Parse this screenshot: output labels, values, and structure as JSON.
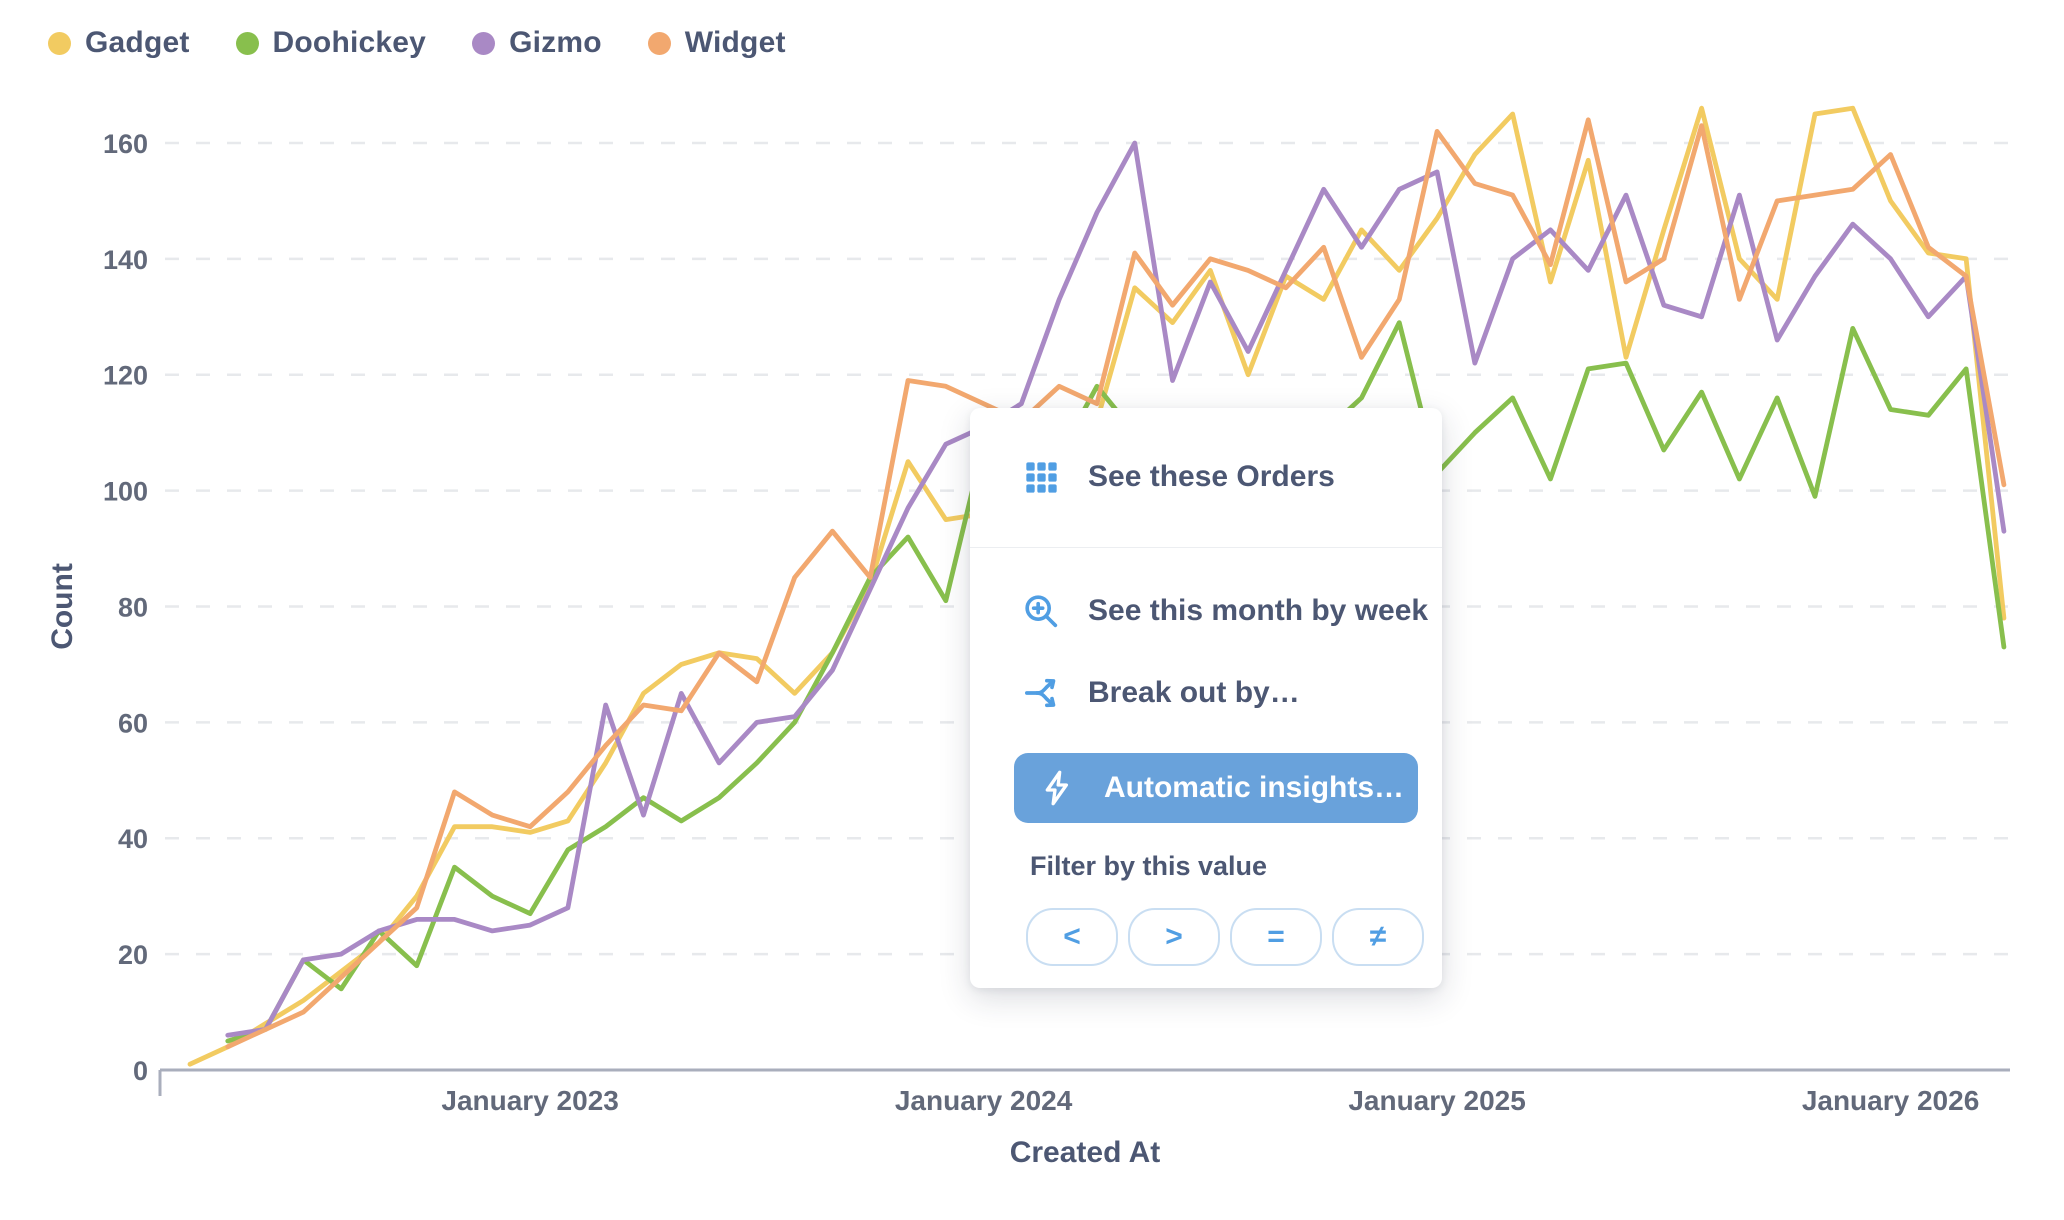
{
  "legend": {
    "items": [
      {
        "label": "Gadget",
        "color": "#F2CB61"
      },
      {
        "label": "Doohickey",
        "color": "#88BF4D"
      },
      {
        "label": "Gizmo",
        "color": "#A989C5"
      },
      {
        "label": "Widget",
        "color": "#F2A86F"
      }
    ]
  },
  "chart_data": {
    "type": "line",
    "title": "",
    "xlabel": "Created At",
    "ylabel": "Count",
    "x_start": "April 2022",
    "x_end": "April 2026",
    "x_interval": "month",
    "ylim": [
      0,
      170
    ],
    "grid": "horizontal-dashed",
    "legend_position": "top-left",
    "y_ticks": [
      0,
      20,
      40,
      60,
      80,
      100,
      120,
      140,
      160
    ],
    "x_ticks": [
      {
        "label": "January 2023",
        "month_index": 9
      },
      {
        "label": "January 2024",
        "month_index": 21
      },
      {
        "label": "January 2025",
        "month_index": 33
      },
      {
        "label": "January 2026",
        "month_index": 45
      }
    ],
    "series": [
      {
        "name": "Gadget",
        "color": "#F2CB61",
        "values": [
          1,
          4,
          8,
          12,
          17,
          22,
          30,
          42,
          42,
          41,
          43,
          53,
          65,
          70,
          72,
          71,
          65,
          72,
          84,
          105,
          95,
          96,
          105,
          110,
          112,
          135,
          129,
          138,
          120,
          137,
          133,
          145,
          138,
          147,
          158,
          165,
          136,
          157,
          123,
          145,
          166,
          140,
          133,
          165,
          166,
          150,
          141,
          140,
          78
        ]
      },
      {
        "name": "Doohickey",
        "color": "#88BF4D",
        "values": [
          null,
          5,
          7,
          19,
          14,
          24,
          18,
          35,
          30,
          27,
          38,
          42,
          47,
          43,
          47,
          53,
          60,
          72,
          85,
          92,
          81,
          108,
          112,
          106,
          118,
          110,
          104,
          112,
          108,
          102,
          110,
          116,
          129,
          103,
          110,
          116,
          102,
          121,
          122,
          107,
          117,
          102,
          116,
          99,
          128,
          114,
          113,
          121,
          73
        ]
      },
      {
        "name": "Gizmo",
        "color": "#A989C5",
        "values": [
          null,
          6,
          7,
          19,
          20,
          24,
          26,
          26,
          24,
          25,
          28,
          63,
          44,
          65,
          53,
          60,
          61,
          69,
          83,
          97,
          108,
          111,
          115,
          133,
          148,
          160,
          119,
          136,
          124,
          138,
          152,
          142,
          152,
          155,
          122,
          140,
          145,
          138,
          151,
          132,
          130,
          151,
          126,
          137,
          146,
          140,
          130,
          137,
          93
        ]
      },
      {
        "name": "Widget",
        "color": "#F2A86F",
        "values": [
          null,
          4,
          7,
          10,
          16,
          22,
          28,
          48,
          44,
          42,
          48,
          56,
          63,
          62,
          72,
          67,
          85,
          93,
          85,
          119,
          118,
          115,
          112,
          118,
          115,
          141,
          132,
          140,
          138,
          135,
          142,
          123,
          133,
          162,
          153,
          151,
          139,
          164,
          136,
          140,
          163,
          133,
          150,
          151,
          152,
          158,
          142,
          137,
          101
        ]
      }
    ]
  },
  "popup": {
    "items": [
      {
        "label": "See these Orders",
        "icon": "table-grid-icon",
        "highlighted": false
      },
      {
        "label": "See this month by week",
        "icon": "zoom-in-icon",
        "highlighted": false
      },
      {
        "label": "Break out by…",
        "icon": "branch-icon",
        "highlighted": false
      },
      {
        "label": "Automatic insights…",
        "icon": "bolt-icon",
        "highlighted": true
      }
    ],
    "filter_section": {
      "label": "Filter by this value",
      "operators": [
        {
          "symbol": "<",
          "name": "less-than"
        },
        {
          "symbol": ">",
          "name": "greater-than"
        },
        {
          "symbol": "=",
          "name": "equals"
        },
        {
          "symbol": "≠",
          "name": "not-equals"
        }
      ]
    },
    "accent_color": "#509EE3",
    "highlight_bg": "#69A2DB"
  },
  "style": {
    "text_color": "#4C5773",
    "tick_color": "#62697a",
    "gridline_color": "#e7e9ec",
    "axis_color": "#a9aebc"
  }
}
